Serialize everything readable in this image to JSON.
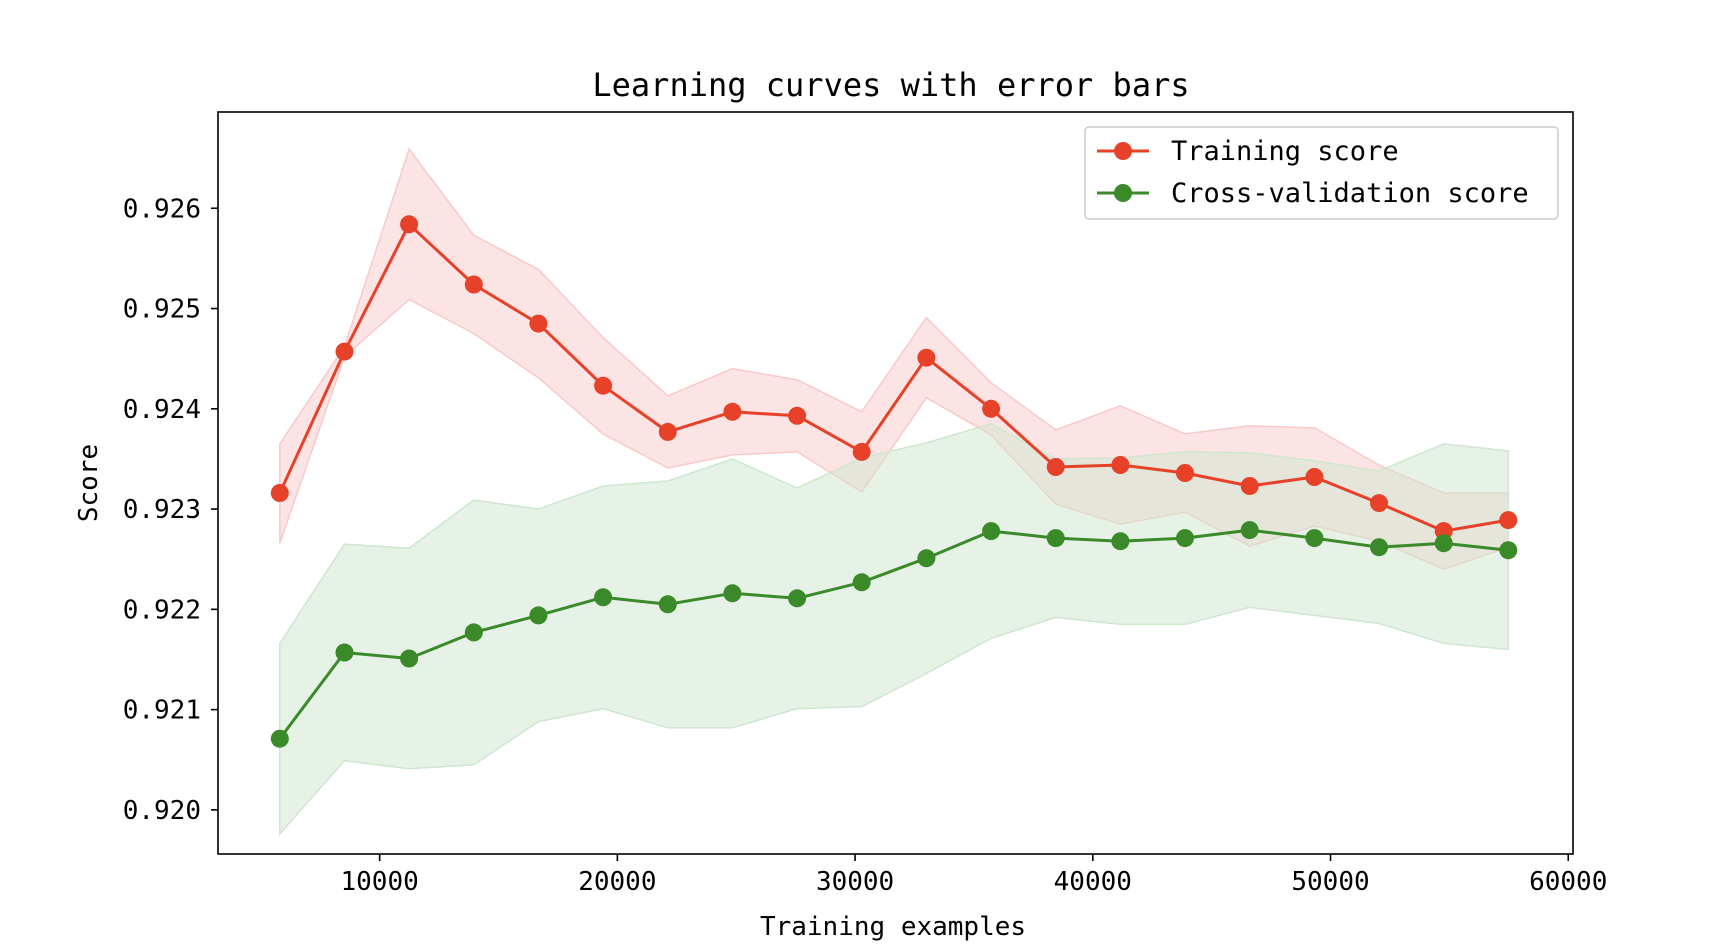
{
  "chart_data": {
    "type": "line",
    "title": "Learning curves with error bars",
    "xlabel": "Training examples",
    "ylabel": "Score",
    "xlim": [
      3200,
      60200
    ],
    "ylim": [
      0.91956,
      0.92696
    ],
    "xticks": [
      10000,
      20000,
      30000,
      40000,
      50000,
      60000
    ],
    "xtick_labels": [
      "10000",
      "20000",
      "30000",
      "40000",
      "50000",
      "60000"
    ],
    "yticks": [
      0.92,
      0.921,
      0.922,
      0.923,
      0.924,
      0.925,
      0.926
    ],
    "ytick_labels": [
      "0.920",
      "0.921",
      "0.922",
      "0.923",
      "0.924",
      "0.925",
      "0.926"
    ],
    "legend_position": "top-right",
    "grid": false,
    "x": [
      5800,
      8520,
      11240,
      13960,
      16680,
      19400,
      22120,
      24840,
      27560,
      30280,
      33000,
      35720,
      38440,
      41160,
      43880,
      46600,
      49320,
      52040,
      54760,
      57480
    ],
    "series": [
      {
        "name": "Training score",
        "color": "#e8412a",
        "band_color": "#f9c9c9",
        "values": [
          0.92316,
          0.92457,
          0.92584,
          0.92524,
          0.92485,
          0.92423,
          0.92377,
          0.92397,
          0.92393,
          0.92357,
          0.92451,
          0.924,
          0.92342,
          0.92344,
          0.92336,
          0.92323,
          0.92332,
          0.92306,
          0.92278,
          0.92289
        ],
        "band_upper": [
          0.92365,
          0.92462,
          0.92659,
          0.92573,
          0.92539,
          0.92471,
          0.92413,
          0.9244,
          0.92429,
          0.92397,
          0.92491,
          0.92426,
          0.92379,
          0.92403,
          0.92375,
          0.92383,
          0.92381,
          0.92344,
          0.92316,
          0.92316
        ],
        "band_lower": [
          0.92266,
          0.92452,
          0.92509,
          0.92475,
          0.92431,
          0.92375,
          0.92341,
          0.92354,
          0.92357,
          0.92317,
          0.92411,
          0.92374,
          0.92305,
          0.92285,
          0.92297,
          0.92263,
          0.92283,
          0.92268,
          0.9224,
          0.92262
        ]
      },
      {
        "name": "Cross-validation score",
        "color": "#3a8a2a",
        "band_color": "#cfe6cf",
        "values": [
          0.92071,
          0.92157,
          0.92151,
          0.92177,
          0.92194,
          0.92212,
          0.92205,
          0.92216,
          0.92211,
          0.92227,
          0.92251,
          0.92278,
          0.92271,
          0.92268,
          0.92271,
          0.92279,
          0.92271,
          0.92262,
          0.92266,
          0.92259
        ],
        "band_upper": [
          0.92166,
          0.92265,
          0.92261,
          0.92309,
          0.923,
          0.92323,
          0.92328,
          0.9235,
          0.92321,
          0.92351,
          0.92366,
          0.92385,
          0.9235,
          0.92351,
          0.92357,
          0.92356,
          0.92348,
          0.92338,
          0.92365,
          0.92358
        ],
        "band_lower": [
          0.91976,
          0.92049,
          0.92041,
          0.92045,
          0.92088,
          0.92101,
          0.92082,
          0.92082,
          0.92101,
          0.92103,
          0.92136,
          0.92171,
          0.92192,
          0.92185,
          0.92185,
          0.92202,
          0.92194,
          0.92186,
          0.92166,
          0.9216
        ]
      }
    ]
  }
}
